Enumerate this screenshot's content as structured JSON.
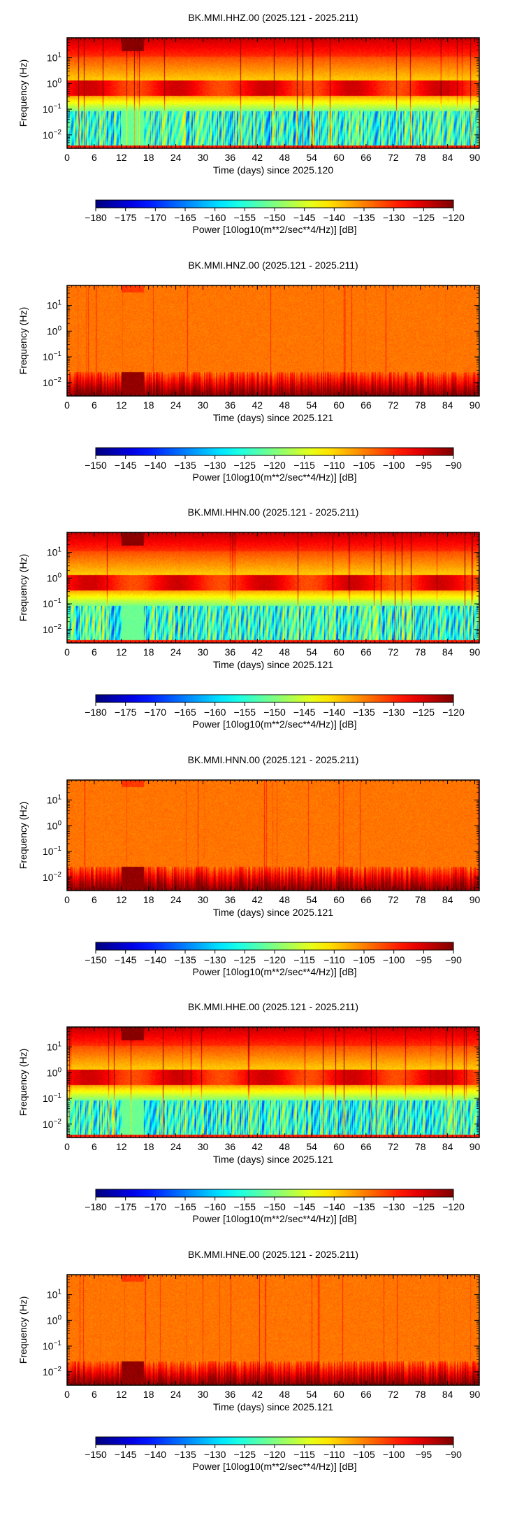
{
  "chart_data": [
    {
      "type": "heatmap",
      "title": "BK.MMI.HHZ.00 (2025.121 - 2025.211)",
      "xlabel": "Time (days) since 2025.120",
      "ylabel": "Frequency (Hz)",
      "x_ticks": [
        "0",
        "6",
        "12",
        "18",
        "24",
        "30",
        "36",
        "42",
        "48",
        "54",
        "60",
        "66",
        "72",
        "78",
        "84",
        "90"
      ],
      "x_range": [
        0,
        91
      ],
      "y_scale": "log",
      "y_range_hz": [
        0.003,
        60
      ],
      "y_ticks": [
        {
          "base": "10",
          "exp": "1"
        },
        {
          "base": "10",
          "exp": "0"
        },
        {
          "base": "10",
          "exp": "−1"
        },
        {
          "base": "10",
          "exp": "−2"
        }
      ],
      "colorbar": {
        "label": "Power [10log10(m**2/sec**4/Hz)] [dB]",
        "ticks": [
          "−180",
          "−175",
          "−170",
          "−165",
          "−160",
          "−155",
          "−150",
          "−145",
          "−140",
          "−135",
          "−130",
          "−125",
          "−120"
        ],
        "range": [
          -180,
          -120
        ]
      },
      "pattern": "velocity"
    },
    {
      "type": "heatmap",
      "title": "BK.MMI.HNZ.00 (2025.121 - 2025.211)",
      "xlabel": "Time (days) since 2025.121",
      "ylabel": "Frequency (Hz)",
      "x_ticks": [
        "0",
        "6",
        "12",
        "18",
        "24",
        "30",
        "36",
        "42",
        "48",
        "54",
        "60",
        "66",
        "72",
        "78",
        "84",
        "90"
      ],
      "x_range": [
        0,
        91
      ],
      "y_scale": "log",
      "y_range_hz": [
        0.003,
        60
      ],
      "y_ticks": [
        {
          "base": "10",
          "exp": "1"
        },
        {
          "base": "10",
          "exp": "0"
        },
        {
          "base": "10",
          "exp": "−1"
        },
        {
          "base": "10",
          "exp": "−2"
        }
      ],
      "colorbar": {
        "label": "Power [10log10(m**2/sec**4/Hz)] [dB]",
        "ticks": [
          "−150",
          "−145",
          "−140",
          "−135",
          "−130",
          "−125",
          "−120",
          "−115",
          "−110",
          "−105",
          "−100",
          "−95",
          "−90"
        ],
        "range": [
          -150,
          -90
        ]
      },
      "pattern": "accel"
    },
    {
      "type": "heatmap",
      "title": "BK.MMI.HHN.00 (2025.121 - 2025.211)",
      "xlabel": "Time (days) since 2025.121",
      "ylabel": "Frequency (Hz)",
      "x_ticks": [
        "0",
        "6",
        "12",
        "18",
        "24",
        "30",
        "36",
        "42",
        "48",
        "54",
        "60",
        "66",
        "72",
        "78",
        "84",
        "90"
      ],
      "x_range": [
        0,
        91
      ],
      "y_scale": "log",
      "y_range_hz": [
        0.003,
        60
      ],
      "y_ticks": [
        {
          "base": "10",
          "exp": "1"
        },
        {
          "base": "10",
          "exp": "0"
        },
        {
          "base": "10",
          "exp": "−1"
        },
        {
          "base": "10",
          "exp": "−2"
        }
      ],
      "colorbar": {
        "label": "Power [10log10(m**2/sec**4/Hz)] [dB]",
        "ticks": [
          "−180",
          "−175",
          "−170",
          "−165",
          "−160",
          "−155",
          "−150",
          "−145",
          "−140",
          "−135",
          "−130",
          "−125",
          "−120"
        ],
        "range": [
          -180,
          -120
        ]
      },
      "pattern": "velocity"
    },
    {
      "type": "heatmap",
      "title": "BK.MMI.HNN.00 (2025.121 - 2025.211)",
      "xlabel": "Time (days) since 2025.121",
      "ylabel": "Frequency (Hz)",
      "x_ticks": [
        "0",
        "6",
        "12",
        "18",
        "24",
        "30",
        "36",
        "42",
        "48",
        "54",
        "60",
        "66",
        "72",
        "78",
        "84",
        "90"
      ],
      "x_range": [
        0,
        91
      ],
      "y_scale": "log",
      "y_range_hz": [
        0.003,
        60
      ],
      "y_ticks": [
        {
          "base": "10",
          "exp": "1"
        },
        {
          "base": "10",
          "exp": "0"
        },
        {
          "base": "10",
          "exp": "−1"
        },
        {
          "base": "10",
          "exp": "−2"
        }
      ],
      "colorbar": {
        "label": "Power [10log10(m**2/sec**4/Hz)] [dB]",
        "ticks": [
          "−150",
          "−145",
          "−140",
          "−135",
          "−130",
          "−125",
          "−120",
          "−115",
          "−110",
          "−105",
          "−100",
          "−95",
          "−90"
        ],
        "range": [
          -150,
          -90
        ]
      },
      "pattern": "accel"
    },
    {
      "type": "heatmap",
      "title": "BK.MMI.HHE.00 (2025.121 - 2025.211)",
      "xlabel": "Time (days) since 2025.121",
      "ylabel": "Frequency (Hz)",
      "x_ticks": [
        "0",
        "6",
        "12",
        "18",
        "24",
        "30",
        "36",
        "42",
        "48",
        "54",
        "60",
        "66",
        "72",
        "78",
        "84",
        "90"
      ],
      "x_range": [
        0,
        91
      ],
      "y_scale": "log",
      "y_range_hz": [
        0.003,
        60
      ],
      "y_ticks": [
        {
          "base": "10",
          "exp": "1"
        },
        {
          "base": "10",
          "exp": "0"
        },
        {
          "base": "10",
          "exp": "−1"
        },
        {
          "base": "10",
          "exp": "−2"
        }
      ],
      "colorbar": {
        "label": "Power [10log10(m**2/sec**4/Hz)] [dB]",
        "ticks": [
          "−180",
          "−175",
          "−170",
          "−165",
          "−160",
          "−155",
          "−150",
          "−145",
          "−140",
          "−135",
          "−130",
          "−125",
          "−120"
        ],
        "range": [
          -180,
          -120
        ]
      },
      "pattern": "velocity"
    },
    {
      "type": "heatmap",
      "title": "BK.MMI.HNE.00 (2025.121 - 2025.211)",
      "xlabel": "Time (days) since 2025.121",
      "ylabel": "Frequency (Hz)",
      "x_ticks": [
        "0",
        "6",
        "12",
        "18",
        "24",
        "30",
        "36",
        "42",
        "48",
        "54",
        "60",
        "66",
        "72",
        "78",
        "84",
        "90"
      ],
      "x_range": [
        0,
        91
      ],
      "y_scale": "log",
      "y_range_hz": [
        0.003,
        60
      ],
      "y_ticks": [
        {
          "base": "10",
          "exp": "1"
        },
        {
          "base": "10",
          "exp": "0"
        },
        {
          "base": "10",
          "exp": "−1"
        },
        {
          "base": "10",
          "exp": "−2"
        }
      ],
      "colorbar": {
        "label": "Power [10log10(m**2/sec**4/Hz)] [dB]",
        "ticks": [
          "−150",
          "−145",
          "−140",
          "−135",
          "−130",
          "−125",
          "−120",
          "−115",
          "−110",
          "−105",
          "−100",
          "−95",
          "−90"
        ],
        "range": [
          -150,
          -90
        ]
      },
      "pattern": "accel"
    }
  ]
}
